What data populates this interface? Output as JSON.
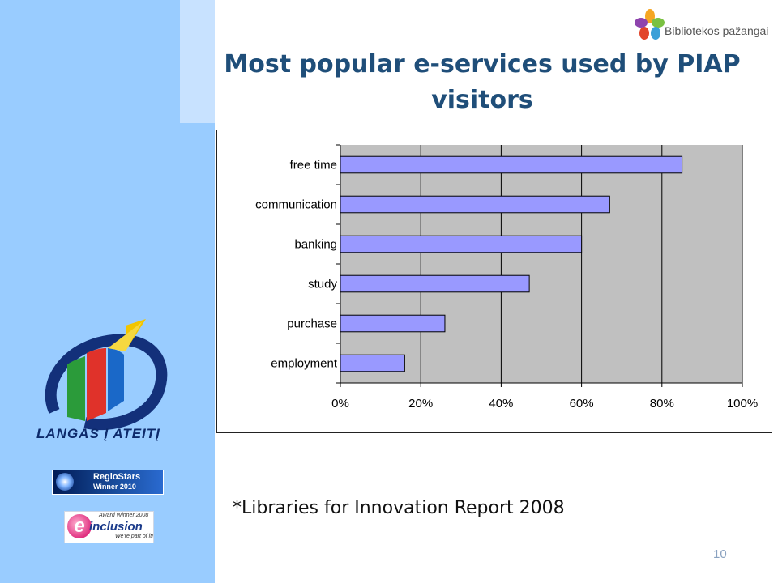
{
  "slide": {
    "title": "Most popular e-services used by PIAP visitors",
    "footnote": "*Libraries for Innovation Report 2008",
    "page_number": "10"
  },
  "logos": {
    "brand": "Bibliotekos pažangai",
    "langas": "LANGAS Į ATEITĮ",
    "regiostars_line1": "RegioStars",
    "regiostars_line2": "Winner 2010",
    "einclusion_award": "Award Winner 2008",
    "einclusion_word": "inclusion",
    "einclusion_letter": "e",
    "einclusion_tagline": "We're part of it!"
  },
  "colors": {
    "bar_fill": "#9999ff",
    "plot_background": "#c0c0c0",
    "title": "#1f4e79",
    "sidebar": "#99ccff"
  },
  "chart_data": {
    "type": "bar",
    "orientation": "horizontal",
    "categories": [
      "free time",
      "communication",
      "banking",
      "study",
      "purchase",
      "employment"
    ],
    "values": [
      85,
      67,
      60,
      47,
      26,
      16
    ],
    "xlim": [
      0,
      100
    ],
    "xticks": [
      "0%",
      "20%",
      "40%",
      "60%",
      "80%",
      "100%"
    ],
    "grid": true,
    "legend": "none"
  }
}
